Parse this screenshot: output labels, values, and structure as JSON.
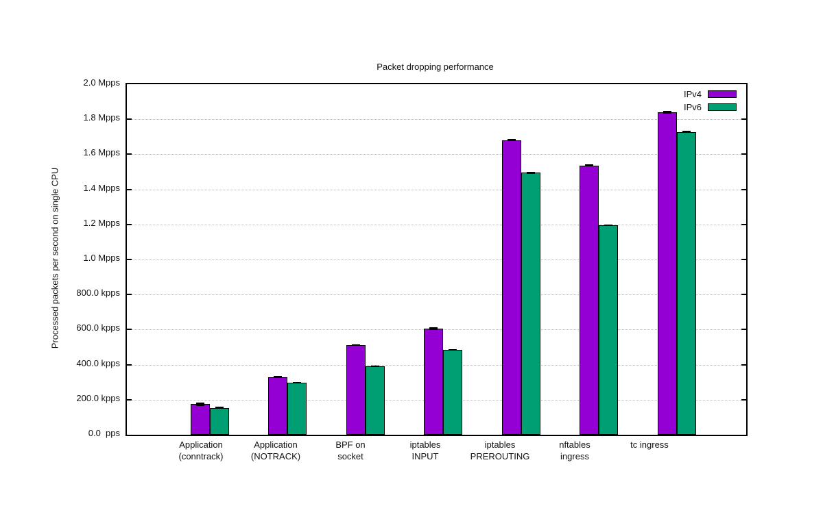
{
  "chart_data": {
    "type": "bar",
    "title": "Packet dropping performance",
    "ylabel": "Processed packets per second on single CPU",
    "xlabel": "",
    "unit": "pps",
    "ylim": [
      0,
      2000000
    ],
    "ytick_interval": 200000,
    "ytick_labels": [
      "0.0  pps",
      "200.0 kpps",
      "400.0 kpps",
      "600.0 kpps",
      "800.0 kpps",
      "1.0 Mpps",
      "1.2 Mpps",
      "1.4 Mpps",
      "1.6 Mpps",
      "1.8 Mpps",
      "2.0 Mpps"
    ],
    "grid": "dotted-horizontal",
    "legend_position": "top-right-inside",
    "categories": [
      "Application (conntrack)",
      "Application (NOTRACK)",
      "BPF on socket",
      "iptables INPUT",
      "iptables PREROUTING",
      "nftables ingress",
      "tc ingress"
    ],
    "category_label_lines": [
      [
        "Application",
        "(conntrack)"
      ],
      [
        "Application",
        "(NOTRACK)"
      ],
      [
        "BPF on",
        "socket"
      ],
      [
        "iptables",
        "INPUT"
      ],
      [
        "iptables",
        "PREROUTING"
      ],
      [
        "nftables",
        "ingress"
      ],
      [
        "tc ingress"
      ]
    ],
    "series": [
      {
        "name": "IPv4",
        "color": "#9400d3",
        "values": [
          175000,
          330000,
          512000,
          605000,
          1680000,
          1537000,
          1840000
        ],
        "errors": [
          9000,
          5000,
          5000,
          8000,
          6000,
          7000,
          8000
        ]
      },
      {
        "name": "IPv6",
        "color": "#009e73",
        "values": [
          154000,
          298000,
          390000,
          485000,
          1495000,
          1195000,
          1727000
        ],
        "errors": [
          5000,
          4000,
          4000,
          5000,
          6000,
          5000,
          6000
        ]
      }
    ],
    "axis_color": "#000000",
    "grid_color": "#b8b8b8",
    "background": "#ffffff"
  }
}
